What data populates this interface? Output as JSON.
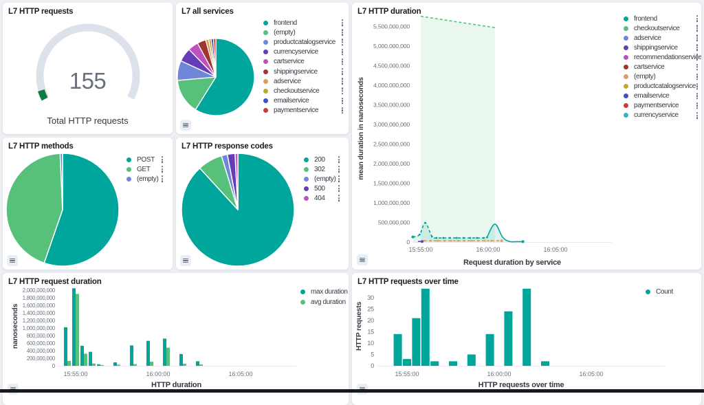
{
  "colors": {
    "page_bg": "#edeff4",
    "panel_bg": "#ffffff",
    "title_text": "#1a1c21",
    "axis_label": "#69707d",
    "axis_title": "#343741",
    "gauge_arc": "#dde2ea",
    "gauge_band": "#0e7d45",
    "teal": "#00a69b",
    "green": "#57c17b",
    "dark_strip": "#191a1f"
  },
  "panels": {
    "gauge": {
      "title": "L7 HTTP requests",
      "value": "155",
      "caption": "Total HTTP requests",
      "chart_data": {
        "type": "gauge",
        "value": 155,
        "label": "Total HTTP requests"
      }
    },
    "services": {
      "title": "L7 all services",
      "chart_data": {
        "type": "pie",
        "labels": [
          "frontend",
          "(empty)",
          "productcatalogservice",
          "currencyservice",
          "cartservice",
          "shippingservice",
          "adservice",
          "checkoutservice",
          "emailservice",
          "paymentservice"
        ],
        "values_pct": [
          58.9,
          14.7,
          8.3,
          5.8,
          4.4,
          3.6,
          1.3,
          1.0,
          1.0,
          1.0
        ],
        "colors": [
          "#00a69b",
          "#57c17b",
          "#6f87d8",
          "#663db8",
          "#bc52bc",
          "#9e3533",
          "#daa05d",
          "#bfa827",
          "#4050c9",
          "#ce3b34"
        ]
      },
      "legend": [
        {
          "label": "frontend",
          "color": "#00a69b"
        },
        {
          "label": "(empty)",
          "color": "#57c17b"
        },
        {
          "label": "productcatalogservice",
          "color": "#6f87d8"
        },
        {
          "label": "currencyservice",
          "color": "#663db8"
        },
        {
          "label": "cartservice",
          "color": "#bc52bc"
        },
        {
          "label": "shippingservice",
          "color": "#9e3533"
        },
        {
          "label": "adservice",
          "color": "#daa05d"
        },
        {
          "label": "checkoutservice",
          "color": "#bfa827"
        },
        {
          "label": "emailservice",
          "color": "#4050c9"
        },
        {
          "label": "paymentservice",
          "color": "#ce3b34"
        }
      ]
    },
    "duration": {
      "title": "L7 HTTP duration",
      "chart_data": {
        "type": "area",
        "ylabel": "mean duration in nanoseconds",
        "xlabel": "Request duration by service",
        "yticks": [
          0,
          500000000,
          1000000000,
          1500000000,
          2000000000,
          2500000000,
          3000000000,
          3500000000,
          4000000000,
          4500000000,
          5000000000,
          5500000000
        ],
        "xticks": [
          "15:55:00",
          "16:00:00",
          "16:05:00"
        ],
        "series": [
          {
            "name": "checkoutservice",
            "color": "#57c17b",
            "fill": true,
            "segments": [
              {
                "style": "dashed",
                "points": [
                  [
                    "15:55:00",
                    5760000000
                  ],
                  [
                    "16:00:30",
                    5470000000
                  ]
                ]
              }
            ]
          },
          {
            "name": "frontend",
            "color": "#00a69b",
            "fill": true,
            "segments": [
              {
                "style": "dashed",
                "markers": true,
                "start_dot": true,
                "points": [
                  [
                    "15:54:25",
                    130000000
                  ],
                  [
                    "15:54:55",
                    190000000
                  ],
                  [
                    "15:55:20",
                    490000000
                  ],
                  [
                    "15:55:50",
                    140000000
                  ],
                  [
                    "15:56:10",
                    105000000
                  ],
                  [
                    "15:56:40",
                    105000000
                  ],
                  [
                    "15:57:10",
                    105000000
                  ],
                  [
                    "15:57:40",
                    105000000
                  ],
                  [
                    "15:58:10",
                    105000000
                  ],
                  [
                    "15:58:40",
                    105000000
                  ],
                  [
                    "15:59:10",
                    105000000
                  ],
                  [
                    "15:59:40",
                    105000000
                  ],
                  [
                    "15:59:55",
                    120000000
                  ]
                ]
              },
              {
                "style": "solid",
                "end_dot": true,
                "points": [
                  [
                    "15:59:55",
                    120000000
                  ],
                  [
                    "16:00:30",
                    460000000
                  ],
                  [
                    "16:01:05",
                    120000000
                  ],
                  [
                    "16:01:35",
                    15000000
                  ],
                  [
                    "16:02:05",
                    10000000
                  ],
                  [
                    "16:02:35",
                    10000000
                  ]
                ]
              }
            ]
          },
          {
            "name": "(empty)",
            "color": "#daa05d",
            "segments": [
              {
                "style": "dashed",
                "markers": true,
                "end_dot": true,
                "points": [
                  [
                    "15:55:15",
                    32000000
                  ],
                  [
                    "15:55:45",
                    32000000
                  ],
                  [
                    "15:56:15",
                    32000000
                  ],
                  [
                    "15:56:45",
                    32000000
                  ],
                  [
                    "15:57:15",
                    32000000
                  ],
                  [
                    "15:57:45",
                    32000000
                  ],
                  [
                    "15:58:15",
                    32000000
                  ],
                  [
                    "15:58:45",
                    32000000
                  ],
                  [
                    "15:59:15",
                    32000000
                  ],
                  [
                    "15:59:45",
                    32000000
                  ],
                  [
                    "16:00:15",
                    32000000
                  ],
                  [
                    "16:00:45",
                    32000000
                  ],
                  [
                    "16:01:00",
                    32000000
                  ]
                ]
              }
            ]
          },
          {
            "name": "shippingservice",
            "color": "#663db8",
            "segments": [
              {
                "style": "solid",
                "end_dot": true,
                "points": [
                  [
                    "15:54:48",
                    14000000
                  ],
                  [
                    "15:55:06",
                    14000000
                  ]
                ]
              }
            ]
          }
        ]
      },
      "legend": [
        {
          "label": "frontend",
          "color": "#00a69b"
        },
        {
          "label": "checkoutservice",
          "color": "#57c17b"
        },
        {
          "label": "adservice",
          "color": "#6f87d8"
        },
        {
          "label": "shippingservice",
          "color": "#663db8"
        },
        {
          "label": "recommendationservice",
          "color": "#bc52bc"
        },
        {
          "label": "cartservice",
          "color": "#9e3533"
        },
        {
          "label": "(empty)",
          "color": "#daa05d"
        },
        {
          "label": "productcatalogservice",
          "color": "#bfa827"
        },
        {
          "label": "emailservice",
          "color": "#4050c9"
        },
        {
          "label": "paymentservice",
          "color": "#ce3b34"
        },
        {
          "label": "currencyservice",
          "color": "#35b1c6"
        }
      ]
    },
    "methods": {
      "title": "L7 HTTP methods",
      "chart_data": {
        "type": "pie",
        "labels": [
          "POST",
          "GET",
          "(empty)"
        ],
        "values_pct": [
          55.3,
          44.0,
          0.7
        ],
        "colors": [
          "#00a69b",
          "#57c17b",
          "#6f87d8"
        ]
      },
      "legend": [
        {
          "label": "POST",
          "color": "#00a69b"
        },
        {
          "label": "GET",
          "color": "#57c17b"
        },
        {
          "label": "(empty)",
          "color": "#6f87d8"
        }
      ]
    },
    "codes": {
      "title": "L7 HTTP response codes",
      "chart_data": {
        "type": "pie",
        "labels": [
          "200",
          "302",
          "(empty)",
          "500",
          "404"
        ],
        "values_pct": [
          88.2,
          7.1,
          1.7,
          2.2,
          0.8
        ],
        "colors": [
          "#00a69b",
          "#57c17b",
          "#6f87d8",
          "#663db8",
          "#bc52bc"
        ]
      },
      "legend": [
        {
          "label": "200",
          "color": "#00a69b"
        },
        {
          "label": "302",
          "color": "#57c17b"
        },
        {
          "label": "(empty)",
          "color": "#6f87d8"
        },
        {
          "label": "500",
          "color": "#663db8"
        },
        {
          "label": "404",
          "color": "#bc52bc"
        }
      ]
    },
    "bar_duration": {
      "title": "L7 HTTP request duration",
      "chart_data": {
        "type": "bar",
        "ylabel": "nanoseconds",
        "xlabel": "HTTP duration",
        "yticks": [
          0,
          200000000,
          400000000,
          600000000,
          800000000,
          1000000000,
          1200000000,
          1400000000,
          1600000000,
          1800000000,
          2000000000
        ],
        "xticks": [
          "15:55:00",
          "16:00:00",
          "16:05:00"
        ],
        "categories": [
          "15:54:30",
          "15:55:00",
          "15:55:30",
          "15:56:00",
          "15:56:30",
          "15:57:30",
          "15:58:30",
          "15:59:30",
          "16:00:30",
          "16:01:30",
          "16:02:30"
        ],
        "series": [
          {
            "name": "max duration",
            "color": "#00a69b",
            "values": [
              1020000000,
              2050000000,
              530000000,
              370000000,
              40000000,
              90000000,
              540000000,
              660000000,
              720000000,
              310000000,
              120000000
            ]
          },
          {
            "name": "avg duration",
            "color": "#57c17b",
            "values": [
              130000000,
              1900000000,
              320000000,
              60000000,
              20000000,
              30000000,
              45000000,
              110000000,
              480000000,
              55000000,
              35000000
            ]
          }
        ]
      },
      "legend": [
        {
          "label": "max duration",
          "color": "#00a69b"
        },
        {
          "label": "avg duration",
          "color": "#57c17b"
        }
      ]
    },
    "bar_count": {
      "title": "L7 HTTP requests over time",
      "chart_data": {
        "type": "bar",
        "ylabel": "HTTP requests",
        "xlabel": "HTTP requests over time",
        "yticks": [
          0,
          5,
          10,
          15,
          20,
          25,
          30
        ],
        "xticks": [
          "15:55:00",
          "16:00:00",
          "16:05:00"
        ],
        "categories": [
          "15:54:30",
          "15:55:00",
          "15:55:30",
          "15:56:00",
          "15:56:30",
          "15:57:30",
          "15:58:30",
          "15:59:30",
          "16:00:30",
          "16:01:30",
          "16:02:30"
        ],
        "series": [
          {
            "name": "Count",
            "color": "#00a69b",
            "values": [
              14,
              3,
              21,
              34,
              2,
              2,
              5,
              14,
              24,
              34,
              2
            ]
          }
        ]
      },
      "legend": [
        {
          "label": "Count",
          "color": "#00a69b"
        }
      ]
    }
  }
}
